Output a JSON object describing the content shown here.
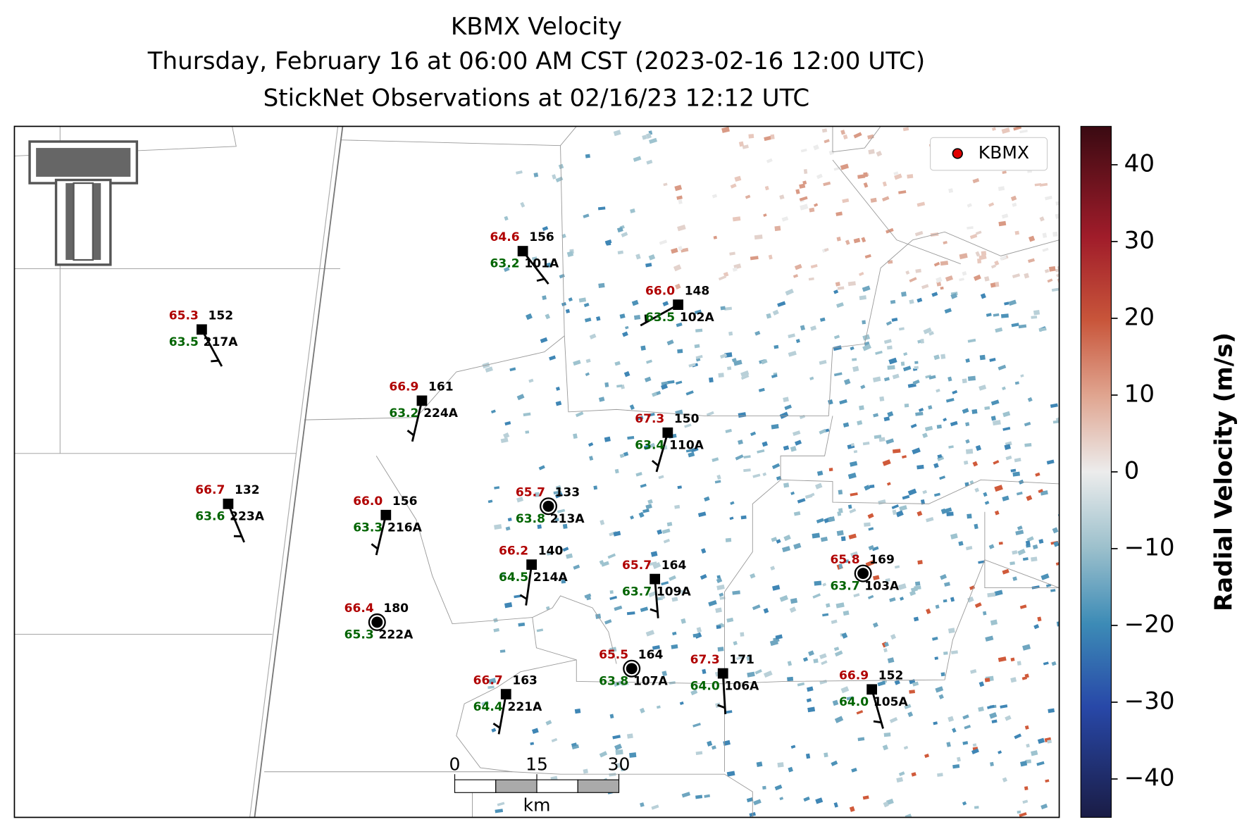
{
  "title_lines": [
    "KBMX Velocity",
    "Thursday, February 16 at 06:00 AM CST (2023-02-16 12:00 UTC)",
    "StickNet Observations at 02/16/23 12:12 UTC"
  ],
  "map": {
    "legend": {
      "label": "KBMX",
      "color": "#e00000"
    },
    "stations": [
      {
        "id": "101A",
        "temperature": "64.6",
        "dewpoint": "63.2",
        "value": 156
      },
      {
        "id": "102A",
        "temperature": "66.0",
        "dewpoint": "63.5",
        "value": 148
      },
      {
        "id": "217A",
        "temperature": "65.3",
        "dewpoint": "63.5",
        "value": 152
      },
      {
        "id": "224A",
        "temperature": "66.9",
        "dewpoint": "63.2",
        "value": 161
      },
      {
        "id": "110A",
        "temperature": "67.3",
        "dewpoint": "63.4",
        "value": 150
      },
      {
        "id": "223A",
        "temperature": "66.7",
        "dewpoint": "63.6",
        "value": 132
      },
      {
        "id": "216A",
        "temperature": "66.0",
        "dewpoint": "63.3",
        "value": 156
      },
      {
        "id": "213A",
        "temperature": "65.7",
        "dewpoint": "63.8",
        "value": 133
      },
      {
        "id": "214A",
        "temperature": "66.2",
        "dewpoint": "64.5",
        "value": 140
      },
      {
        "id": "109A",
        "temperature": "65.7",
        "dewpoint": "63.7",
        "value": 164
      },
      {
        "id": "222A",
        "temperature": "66.4",
        "dewpoint": "65.3",
        "value": 180
      },
      {
        "id": "103A",
        "temperature": "65.8",
        "dewpoint": "63.7",
        "value": 169
      },
      {
        "id": "107A",
        "temperature": "65.5",
        "dewpoint": "63.8",
        "value": 164
      },
      {
        "id": "106A",
        "temperature": "67.3",
        "dewpoint": "64.0",
        "value": 171
      },
      {
        "id": "221A",
        "temperature": "66.7",
        "dewpoint": "64.4",
        "value": 163
      },
      {
        "id": "105A",
        "temperature": "66.9",
        "dewpoint": "64.0",
        "value": 152
      }
    ],
    "scalebar": {
      "ticks": [
        0,
        15,
        30
      ],
      "unit": "km"
    }
  },
  "colorbar": {
    "label": "Radial Velocity (m/s)",
    "lim": [
      -45,
      45
    ],
    "ticks": [
      {
        "value": -40,
        "label": "−40"
      },
      {
        "value": -30,
        "label": "−30"
      },
      {
        "value": -20,
        "label": "−20"
      },
      {
        "value": -10,
        "label": "−10"
      },
      0,
      10,
      20,
      30,
      40
    ]
  }
}
